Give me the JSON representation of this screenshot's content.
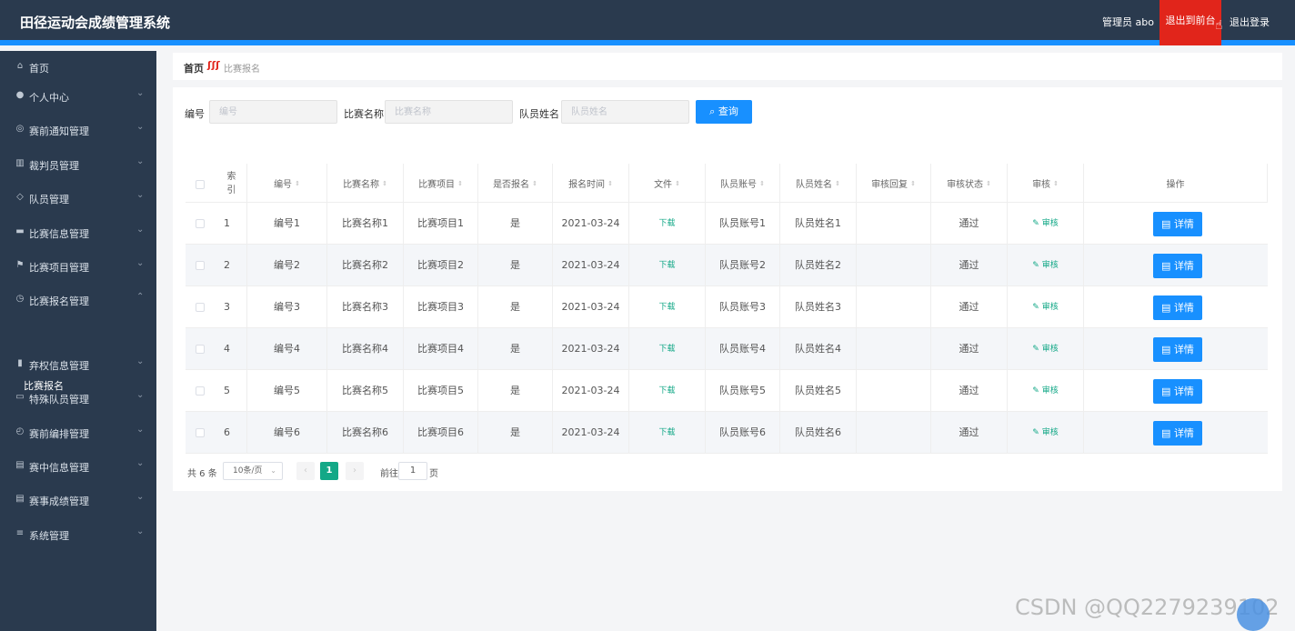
{
  "header": {
    "title": "田径运动会成绩管理系统",
    "user": "管理员 abo",
    "front_button": "退出到前台",
    "logout": "退出登录"
  },
  "sidebar": {
    "items": [
      {
        "label": "首页",
        "icon": "home-icon",
        "glyph": "⌂",
        "chev": ""
      },
      {
        "label": "个人中心",
        "icon": "user-icon",
        "glyph": "●",
        "chev": "⌄"
      },
      {
        "label": "赛前通知管理",
        "icon": "globe-icon",
        "glyph": "◎",
        "chev": "⌄"
      },
      {
        "label": "裁判员管理",
        "icon": "chart-icon",
        "glyph": "▥",
        "chev": "⌄"
      },
      {
        "label": "队员管理",
        "icon": "bell-icon",
        "glyph": "◇",
        "chev": "⌄"
      },
      {
        "label": "比赛信息管理",
        "icon": "ticket-icon",
        "glyph": "▬",
        "chev": "⌄"
      },
      {
        "label": "比赛项目管理",
        "icon": "flag-icon",
        "glyph": "⚑",
        "chev": "⌄"
      },
      {
        "label": "比赛报名管理",
        "icon": "compass-icon",
        "glyph": "◷",
        "chev": "⌃"
      },
      {
        "label": "弃权信息管理",
        "icon": "bar-chart-icon",
        "glyph": "▮",
        "chev": "⌄"
      },
      {
        "label": "特殊队员管理",
        "icon": "monitor-icon",
        "glyph": "▭",
        "chev": "⌄"
      },
      {
        "label": "赛前编排管理",
        "icon": "clock-icon",
        "glyph": "◴",
        "chev": "⌄"
      },
      {
        "label": "赛中信息管理",
        "icon": "clipboard-icon",
        "glyph": "▤",
        "chev": "⌄"
      },
      {
        "label": "赛事成绩管理",
        "icon": "file-icon",
        "glyph": "▤",
        "chev": "⌄"
      },
      {
        "label": "系统管理",
        "icon": "menu-icon",
        "glyph": "≡",
        "chev": "⌄"
      }
    ],
    "sub_item": "比赛报名"
  },
  "breadcrumb": {
    "home": "首页",
    "separator": "ʃʃʃ",
    "current": "比赛报名"
  },
  "search": {
    "label1": "编号",
    "placeholder1": "编号",
    "label2": "比赛名称",
    "placeholder2": "比赛名称",
    "label3": "队员姓名",
    "placeholder3": "队员姓名",
    "button": "查询"
  },
  "table": {
    "headers": [
      "索引",
      "编号",
      "比赛名称",
      "比赛项目",
      "是否报名",
      "报名时间",
      "文件",
      "队员账号",
      "队员姓名",
      "审核回复",
      "审核状态",
      "审核",
      "操作"
    ],
    "download_label": "下载",
    "audit_label": "审核",
    "detail_label": "详情",
    "rows": [
      [
        "1",
        "编号1",
        "比赛名称1",
        "比赛项目1",
        "是",
        "2021-03-24",
        "队员账号1",
        "队员姓名1",
        "",
        "通过"
      ],
      [
        "2",
        "编号2",
        "比赛名称2",
        "比赛项目2",
        "是",
        "2021-03-24",
        "队员账号2",
        "队员姓名2",
        "",
        "通过"
      ],
      [
        "3",
        "编号3",
        "比赛名称3",
        "比赛项目3",
        "是",
        "2021-03-24",
        "队员账号3",
        "队员姓名3",
        "",
        "通过"
      ],
      [
        "4",
        "编号4",
        "比赛名称4",
        "比赛项目4",
        "是",
        "2021-03-24",
        "队员账号4",
        "队员姓名4",
        "",
        "通过"
      ],
      [
        "5",
        "编号5",
        "比赛名称5",
        "比赛项目5",
        "是",
        "2021-03-24",
        "队员账号5",
        "队员姓名5",
        "",
        "通过"
      ],
      [
        "6",
        "编号6",
        "比赛名称6",
        "比赛项目6",
        "是",
        "2021-03-24",
        "队员账号6",
        "队员姓名6",
        "",
        "通过"
      ]
    ]
  },
  "pagination": {
    "total": "共 6 条",
    "page_size": "10条/页",
    "current_page": "1",
    "goto_label": "前往",
    "goto_value": "1",
    "unit": "页"
  },
  "watermark": "CSDN @QQ2279239102"
}
